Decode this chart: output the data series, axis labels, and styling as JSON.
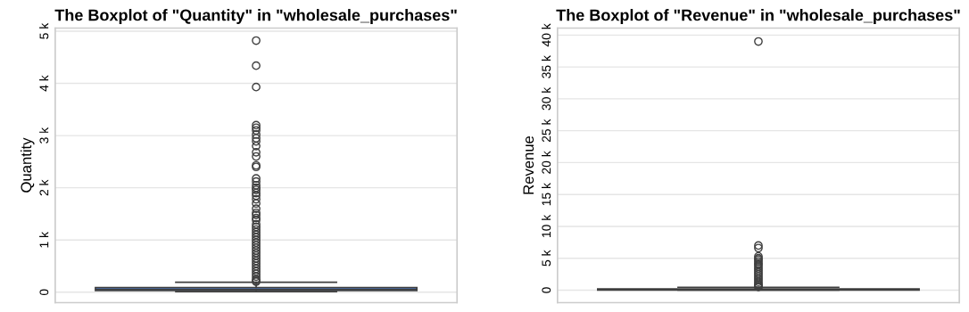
{
  "chart_data": [
    {
      "type": "box",
      "title": "The Boxplot of \"Quantity\" in \"wholesale_purchases\"",
      "ylabel": "Quantity",
      "categories": [
        null
      ],
      "series": [
        {
          "color": "#4c72b0",
          "boxes": [
            {
              "low": 10,
              "q1": 30,
              "median": 50,
              "q3": 90,
              "high": 190,
              "outliers": [
                4820,
                4340,
                3930,
                3200,
                3150,
                3100,
                3020,
                2950,
                2890,
                2800,
                2680,
                2600,
                2430,
                2400,
                2180,
                2120,
                2050,
                2000,
                1960,
                1900,
                1850,
                1780,
                1700,
                1600,
                1520,
                1480,
                1420,
                1380,
                1300,
                1250,
                1200,
                1150,
                1100,
                1050,
                1000,
                950,
                900,
                850,
                800,
                750,
                700,
                650,
                600,
                550,
                500,
                450,
                400,
                350,
                300,
                250,
                220,
                200
              ]
            }
          ]
        }
      ],
      "ylim": [
        -200,
        5060
      ],
      "yticks": [
        0,
        {
          "value": 1000,
          "label": "1 k"
        },
        {
          "value": 2000,
          "label": "2 k"
        },
        {
          "value": 3000,
          "label": "3 k"
        },
        {
          "value": 4000,
          "label": "4 k"
        },
        {
          "value": 5000,
          "label": "5 k"
        }
      ],
      "grid": "y",
      "tick_labels": "y"
    },
    {
      "type": "box",
      "title": "The Boxplot of \"Revenue\" in \"wholesale_purchases\"",
      "ylabel": "Revenue",
      "categories": [
        null
      ],
      "series": [
        {
          "color": "#4c72b0",
          "boxes": [
            {
              "low": 0,
              "q1": 10,
              "median": 50,
              "q3": 190,
              "high": 450,
              "outliers": [
                39000,
                7000,
                6600,
                5300,
                5000,
                4800,
                4500,
                4200,
                4000,
                3700,
                3400,
                3100,
                2800,
                2500,
                2200,
                1900,
                1600,
                1300,
                1000,
                800,
                600,
                500
              ]
            }
          ]
        }
      ],
      "ylim": [
        -1960,
        41100
      ],
      "yticks": [
        0,
        {
          "value": 5000,
          "label": "5 k"
        },
        {
          "value": 10000,
          "label": "10 k"
        },
        {
          "value": 15000,
          "label": "15 k"
        },
        {
          "value": 20000,
          "label": "20 k"
        },
        {
          "value": 25000,
          "label": "25 k"
        },
        {
          "value": 30000,
          "label": "30 k"
        },
        {
          "value": 35000,
          "label": "35 k"
        },
        {
          "value": 40000,
          "label": "40 k"
        }
      ],
      "grid": "y",
      "tick_labels": "y"
    }
  ]
}
